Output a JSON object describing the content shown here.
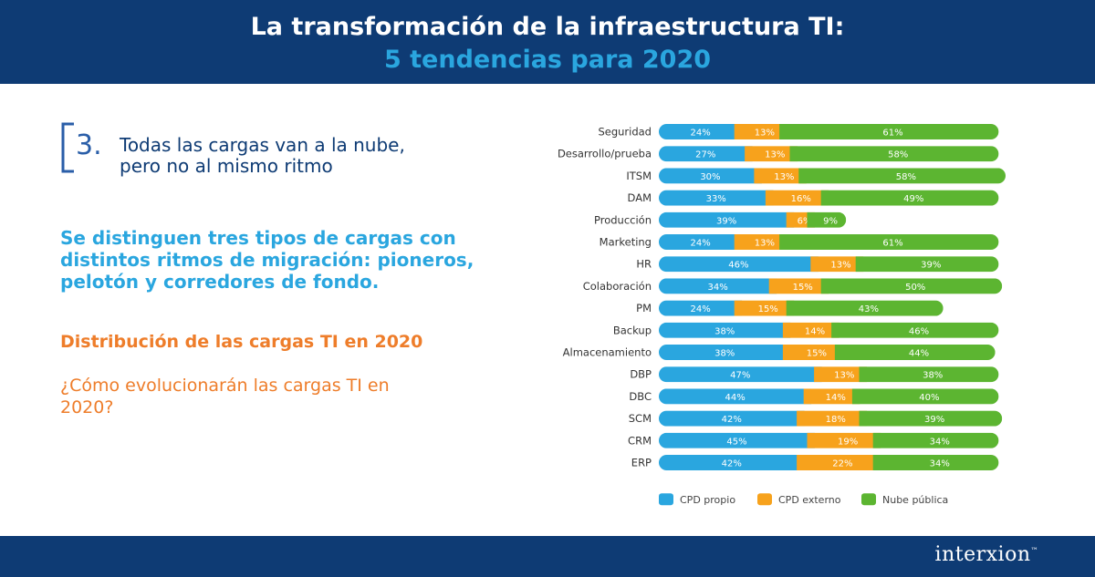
{
  "header": {
    "title": "La transformación de la infraestructura TI:",
    "subtitle": "5 tendencias para 2020"
  },
  "trend": {
    "number": "3.",
    "line1": "Todas las cargas van a la nube,",
    "line2": "pero no al mismo ritmo"
  },
  "lead_text": "Se distinguen tres tipos de cargas con distintos ritmos de migración: pioneros, pelotón y corredores de fondo.",
  "section_title": "Distribución de las cargas TI en 2020",
  "question": "¿Cómo evolucionarán las cargas TI en 2020?",
  "footer": {
    "logo": "interxion",
    "logo_mark": "™"
  },
  "colors": {
    "navy": "#0e3b74",
    "cyan": "#2aa6df",
    "orange": "#f7a21c",
    "green": "#5cb531",
    "accent_orange": "#ee7d2a"
  },
  "chart_data": {
    "type": "bar",
    "orientation": "horizontal",
    "stacked": true,
    "categories": [
      "Seguridad",
      "Desarrollo/prueba",
      "ITSM",
      "DAM",
      "Producción",
      "Marketing",
      "HR",
      "Colaboración",
      "PM",
      "Backup",
      "Almacenamiento",
      "DBP",
      "DBC",
      "SCM",
      "CRM",
      "ERP"
    ],
    "series": [
      {
        "name": "CPD propio",
        "color": "#2aa6df",
        "values": [
          24,
          27,
          30,
          33,
          39,
          24,
          46,
          34,
          24,
          38,
          38,
          47,
          44,
          42,
          45,
          42
        ]
      },
      {
        "name": "CPD externo",
        "color": "#f7a21c",
        "values": [
          13,
          13,
          13,
          16,
          6,
          13,
          13,
          15,
          15,
          14,
          15,
          13,
          14,
          18,
          19,
          22
        ]
      },
      {
        "name": "Nube pública",
        "color": "#5cb531",
        "values": [
          61,
          58,
          58,
          49,
          9,
          61,
          39,
          50,
          43,
          46,
          44,
          38,
          40,
          39,
          34,
          34
        ]
      }
    ],
    "value_suffix": "%",
    "legend_position": "bottom"
  }
}
